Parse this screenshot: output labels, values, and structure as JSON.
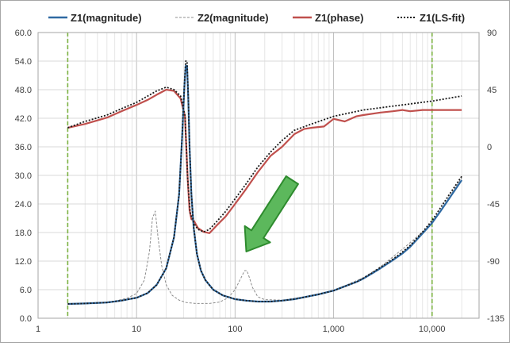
{
  "chart_data": {
    "type": "line",
    "x_scale": "log",
    "xlim": [
      1,
      30000
    ],
    "ylim": [
      0,
      60
    ],
    "y2lim": [
      -135,
      90
    ],
    "grid": true,
    "legend_position": "top",
    "x_tick_labels": [
      "1",
      "10",
      "100",
      "1,000",
      "10,000"
    ],
    "y_tick_labels": [
      "0.0",
      "6.0",
      "12.0",
      "18.0",
      "24.0",
      "30.0",
      "36.0",
      "42.0",
      "48.0",
      "54.0",
      "60.0"
    ],
    "y2_tick_labels": [
      "-135",
      "-90",
      "-45",
      "0",
      "45",
      "90"
    ],
    "vertical_markers": [
      {
        "x": 2,
        "color": "#7cb342"
      },
      {
        "x": 10000,
        "color": "#7cb342"
      }
    ],
    "arrow_annotation": {
      "tip": [
        130,
        14.0
      ],
      "tail": [
        380,
        29.0
      ],
      "color": "#5cb85c"
    },
    "series": [
      {
        "name": "Z1(magnitude)",
        "color": "#2f6aa3",
        "style": "solid",
        "axis": "left",
        "x": [
          2,
          3,
          5,
          7,
          10,
          13,
          16,
          20,
          24,
          27,
          29,
          30.5,
          31.5,
          32.5,
          33.5,
          34.5,
          36,
          38,
          41,
          45,
          50,
          60,
          75,
          100,
          130,
          170,
          230,
          300,
          400,
          500,
          700,
          1000,
          1300,
          1700,
          2000,
          2500,
          3000,
          4000,
          5000,
          6000,
          7000,
          8000,
          10000,
          12000,
          15000,
          20000
        ],
        "y": [
          3.0,
          3.1,
          3.3,
          3.7,
          4.3,
          5.3,
          7.0,
          10.5,
          17.0,
          26.0,
          38.0,
          48.0,
          53.0,
          53.0,
          46.0,
          36.0,
          26.0,
          19.0,
          13.5,
          10.0,
          8.0,
          6.0,
          4.8,
          4.0,
          3.7,
          3.5,
          3.5,
          3.7,
          4.0,
          4.4,
          5.0,
          5.8,
          6.7,
          7.6,
          8.3,
          9.5,
          10.5,
          12.2,
          13.6,
          15.0,
          16.5,
          17.8,
          20.0,
          22.3,
          25.2,
          29.0
        ]
      },
      {
        "name": "Z2(magnitude)",
        "color": "#8c8c8c",
        "style": "dashed",
        "axis": "left",
        "x": [
          2,
          4,
          6,
          8,
          10,
          12,
          13.5,
          14.5,
          15.5,
          16.5,
          18,
          20,
          23,
          27,
          32,
          40,
          55,
          70,
          85,
          100,
          115,
          125,
          132,
          140,
          150,
          170,
          200,
          300,
          500,
          1000,
          2000,
          3000,
          5000,
          10000,
          20000
        ],
        "y": [
          3.0,
          3.2,
          3.6,
          4.2,
          5.2,
          8.0,
          14.0,
          21.0,
          22.5,
          17.0,
          11.0,
          7.0,
          4.8,
          3.8,
          3.3,
          3.1,
          3.1,
          3.4,
          4.3,
          6.0,
          8.5,
          10.0,
          10.0,
          8.5,
          6.5,
          4.5,
          3.9,
          3.8,
          4.5,
          5.8,
          8.5,
          10.8,
          14.5,
          19.8,
          29.5
        ]
      },
      {
        "name": "Z1(phase)",
        "color": "#c0504d",
        "style": "solid",
        "axis": "right",
        "x": [
          2,
          3,
          5,
          7,
          10,
          13,
          16,
          20,
          24,
          28,
          31,
          33,
          34.5,
          36,
          38,
          42,
          48,
          55,
          65,
          80,
          100,
          130,
          170,
          230,
          300,
          400,
          500,
          600,
          800,
          1000,
          1300,
          1700,
          2000,
          3000,
          4000,
          5000,
          6000,
          8000,
          10000,
          15000,
          20000
        ],
        "y": [
          15,
          18,
          23,
          28,
          33,
          37,
          41,
          45,
          44,
          38,
          24,
          -25,
          -50,
          -57,
          -58,
          -64,
          -67,
          -68,
          -62,
          -55,
          -45,
          -33,
          -20,
          -7,
          0,
          10,
          14,
          15,
          16,
          22,
          20,
          24,
          25,
          27,
          28,
          29,
          28,
          29,
          29,
          29,
          29
        ]
      },
      {
        "name": "Z1(LS-fit)",
        "color": "#1a1a1a",
        "style": "dotted",
        "axis": "right",
        "x": [
          2,
          3,
          5,
          7,
          10,
          13,
          16,
          20,
          24,
          28,
          31,
          33,
          35,
          38,
          42,
          48,
          55,
          65,
          80,
          100,
          130,
          170,
          230,
          300,
          400,
          600,
          1000,
          2000,
          5000,
          10000,
          20000
        ],
        "y": [
          15,
          20,
          25,
          30,
          35,
          40,
          44,
          47,
          45,
          40,
          25,
          -25,
          -52,
          -60,
          -65,
          -67,
          -65,
          -59,
          -51,
          -41,
          -29,
          -16,
          -4,
          5,
          13,
          18,
          24,
          29,
          33,
          36,
          40
        ]
      },
      {
        "name": "Z1(LS-fit)",
        "color": "#1a1a1a",
        "style": "dotted",
        "axis": "left",
        "x": [
          2,
          3,
          5,
          7,
          10,
          13,
          16,
          20,
          24,
          27,
          29,
          30.5,
          31.5,
          32.5,
          33.5,
          34.5,
          36,
          38,
          41,
          45,
          50,
          60,
          75,
          100,
          130,
          170,
          230,
          300,
          400,
          500,
          700,
          1000,
          1300,
          1700,
          2000,
          2500,
          3000,
          4000,
          5000,
          6000,
          7000,
          8000,
          10000,
          12000,
          15000,
          20000
        ],
        "y": [
          3.0,
          3.1,
          3.3,
          3.7,
          4.3,
          5.3,
          7.0,
          10.5,
          17.0,
          26.0,
          38.0,
          48.5,
          54.0,
          54.0,
          46.5,
          36.0,
          26.0,
          19.0,
          13.5,
          10.0,
          8.0,
          6.0,
          4.8,
          4.0,
          3.7,
          3.5,
          3.5,
          3.7,
          4.0,
          4.4,
          5.0,
          5.8,
          6.7,
          7.6,
          8.4,
          9.6,
          10.7,
          12.4,
          13.9,
          15.3,
          16.8,
          18.1,
          20.5,
          23.0,
          26.0,
          29.8
        ]
      }
    ]
  }
}
